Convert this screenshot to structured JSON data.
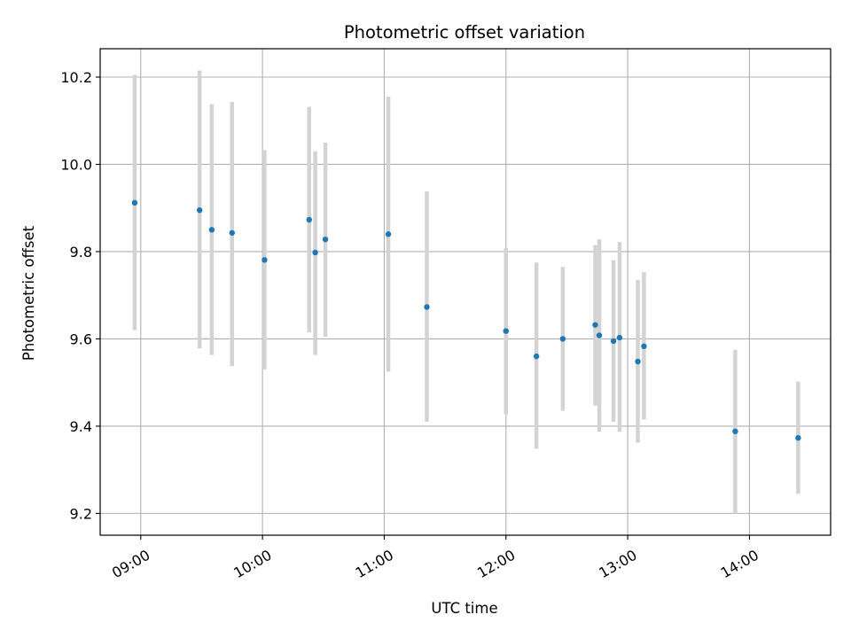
{
  "chart_data": {
    "type": "scatter",
    "title": "Photometric offset variation",
    "xlabel": "UTC time",
    "ylabel": "Photometric offset",
    "xlim": [
      "08:40",
      "14:40"
    ],
    "ylim": [
      9.15,
      10.265
    ],
    "xticks": [
      "09:00",
      "10:00",
      "11:00",
      "12:00",
      "13:00",
      "14:00"
    ],
    "yticks": [
      "9.2",
      "9.4",
      "9.6",
      "9.8",
      "10.0",
      "10.2"
    ],
    "grid": true,
    "colors": {
      "point": "#1f77b4",
      "errorbar": "#d3d3d3",
      "grid": "#b0b0b0"
    },
    "points": [
      {
        "x": "08:57",
        "y": 9.912,
        "err_low": 9.62,
        "err_high": 10.205
      },
      {
        "x": "09:29",
        "y": 9.895,
        "err_low": 9.578,
        "err_high": 10.215
      },
      {
        "x": "09:35",
        "y": 9.85,
        "err_low": 9.563,
        "err_high": 10.138
      },
      {
        "x": "09:45",
        "y": 9.843,
        "err_low": 9.538,
        "err_high": 10.143
      },
      {
        "x": "10:01",
        "y": 9.781,
        "err_low": 9.53,
        "err_high": 10.033
      },
      {
        "x": "10:23",
        "y": 9.873,
        "err_low": 9.615,
        "err_high": 10.132
      },
      {
        "x": "10:26",
        "y": 9.798,
        "err_low": 9.563,
        "err_high": 10.03
      },
      {
        "x": "10:31",
        "y": 9.828,
        "err_low": 9.605,
        "err_high": 10.05
      },
      {
        "x": "11:02",
        "y": 9.84,
        "err_low": 9.525,
        "err_high": 10.155
      },
      {
        "x": "11:21",
        "y": 9.673,
        "err_low": 9.41,
        "err_high": 9.938
      },
      {
        "x": "12:00",
        "y": 9.618,
        "err_low": 9.427,
        "err_high": 9.808
      },
      {
        "x": "12:15",
        "y": 9.56,
        "err_low": 9.348,
        "err_high": 9.775
      },
      {
        "x": "12:28",
        "y": 9.6,
        "err_low": 9.435,
        "err_high": 9.765
      },
      {
        "x": "12:44",
        "y": 9.632,
        "err_low": 9.447,
        "err_high": 9.815
      },
      {
        "x": "12:46",
        "y": 9.608,
        "err_low": 9.387,
        "err_high": 9.828
      },
      {
        "x": "12:53",
        "y": 9.595,
        "err_low": 9.41,
        "err_high": 9.78
      },
      {
        "x": "12:56",
        "y": 9.603,
        "err_low": 9.387,
        "err_high": 9.822
      },
      {
        "x": "13:05",
        "y": 9.548,
        "err_low": 9.362,
        "err_high": 9.735
      },
      {
        "x": "13:08",
        "y": 9.583,
        "err_low": 9.415,
        "err_high": 9.753
      },
      {
        "x": "13:53",
        "y": 9.388,
        "err_low": 9.2,
        "err_high": 9.575
      },
      {
        "x": "14:24",
        "y": 9.373,
        "err_low": 9.245,
        "err_high": 9.502
      }
    ]
  }
}
